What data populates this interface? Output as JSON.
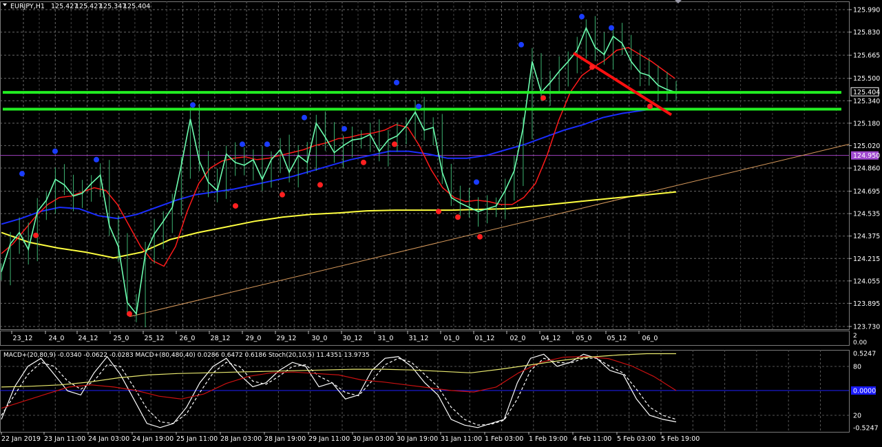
{
  "chart_data": [
    {
      "type": "line",
      "title": "EURJPY,H1",
      "ohlc": [
        "125.427",
        "125.427",
        "125.347",
        "125.404"
      ],
      "y_range": [
        123.73,
        125.99
      ],
      "y_ticks": [
        "125.990",
        "125.830",
        "125.665",
        "125.500",
        "125.340",
        "125.180",
        "125.020",
        "124.860",
        "124.695",
        "124.535",
        "124.375",
        "124.215",
        "124.055",
        "123.895",
        "123.730"
      ],
      "price_tag": "125.404",
      "level_tag": "124.950",
      "x_ticks": [
        "23_12",
        "24_0",
        "24_12",
        "25_0",
        "25_12",
        "26_0",
        "28_12",
        "29_0",
        "29_12",
        "30_0",
        "30_12",
        "31_0",
        "31_12",
        "01_0",
        "01_12",
        "02_0",
        "04_12",
        "05_0",
        "05_12",
        "06_0"
      ],
      "series": [
        {
          "role": "price",
          "color": "#6dffb0",
          "values": [
            124.12,
            124.32,
            124.4,
            124.28,
            124.55,
            124.63,
            124.78,
            124.74,
            124.66,
            124.68,
            124.75,
            124.81,
            124.45,
            124.3,
            123.9,
            123.82,
            124.25,
            124.39,
            124.48,
            124.58,
            124.88,
            125.21,
            124.91,
            124.76,
            124.7,
            124.96,
            124.9,
            124.88,
            124.92,
            124.78,
            124.92,
            124.99,
            124.83,
            124.95,
            124.9,
            125.18,
            125.08,
            124.97,
            125.02,
            125.06,
            125.07,
            125.1,
            124.98,
            125.06,
            125.09,
            125.16,
            125.26,
            125.13,
            125.15,
            124.83,
            124.65,
            124.61,
            124.58,
            124.55,
            124.57,
            124.59,
            124.7,
            124.84,
            125.15,
            125.62,
            125.4,
            125.47,
            125.55,
            125.62,
            125.7,
            125.86,
            125.72,
            125.67,
            125.8,
            125.75,
            125.62,
            125.54,
            125.52,
            125.45,
            125.42,
            125.4
          ]
        },
        {
          "role": "ma-fast",
          "color": "#ff1a1a",
          "values": [
            124.25,
            124.32,
            124.42,
            124.52,
            124.6,
            124.65,
            124.66,
            124.69,
            124.72,
            124.7,
            124.6,
            124.45,
            124.3,
            124.2,
            124.16,
            124.3,
            124.55,
            124.75,
            124.86,
            124.91,
            124.93,
            124.94,
            124.92,
            124.93,
            124.95,
            124.97,
            124.99,
            125.02,
            125.04,
            125.07,
            125.08,
            125.1,
            125.11,
            125.13,
            125.17,
            125.15,
            125.02,
            124.85,
            124.72,
            124.65,
            124.62,
            124.63,
            124.62,
            124.6,
            124.6,
            124.65,
            124.75,
            124.95,
            125.2,
            125.4,
            125.52,
            125.58,
            125.63,
            125.7,
            125.72,
            125.67,
            125.62,
            125.56,
            125.5
          ]
        },
        {
          "role": "ma-mid",
          "color": "#1a2dff",
          "values": [
            124.46,
            124.5,
            124.55,
            124.58,
            124.57,
            124.52,
            124.5,
            124.53,
            124.58,
            124.63,
            124.67,
            124.69,
            124.71,
            124.74,
            124.77,
            124.8,
            124.84,
            124.88,
            124.92,
            124.95,
            124.98,
            124.98,
            124.96,
            124.93,
            124.93,
            124.95,
            124.99,
            125.03,
            125.08,
            125.13,
            125.17,
            125.22,
            125.25,
            125.27,
            125.29
          ]
        },
        {
          "role": "ma-slow",
          "color": "#ffff40",
          "values": [
            124.4,
            124.33,
            124.29,
            124.26,
            124.22,
            124.26,
            124.35,
            124.4,
            124.44,
            124.48,
            124.51,
            124.53,
            124.54,
            124.555,
            124.56,
            124.56,
            124.56,
            124.565,
            124.57,
            124.59,
            124.61,
            124.63,
            124.65,
            124.67,
            124.69
          ]
        }
      ],
      "horizontal_levels": [
        125.4,
        125.28
      ],
      "fractals_up": [
        124.82,
        124.98,
        124.92,
        125.31,
        125.03,
        125.03,
        125.22,
        125.14,
        125.47,
        125.3,
        124.76,
        125.74,
        125.94,
        125.86
      ],
      "fractals_down": [
        124.38,
        123.82,
        124.59,
        124.67,
        124.74,
        124.9,
        125.03,
        124.55,
        124.51,
        124.37,
        125.36,
        125.58,
        125.3
      ]
    },
    {
      "type": "line",
      "title": "MACD+(20,80,9) -0.0340 -0.0622 -0.0283  MACD+(80,480,40) 0.0286 0.6472 0.6186  Stoch(20,10,5) 11.4351 13.9735",
      "y_ticks_top": [
        "2",
        "0.00"
      ],
      "y_ticks": [
        "0.5247",
        "80",
        "20",
        "-0.5247"
      ],
      "zero_tag": "0.0000",
      "x_ticks": [
        "22 Jan 2019",
        "23 Jan 11:00",
        "24 Jan 03:00",
        "24 Jan 19:00",
        "25 Jan 11:00",
        "28 Jan 03:00",
        "28 Jan 19:00",
        "29 Jan 11:00",
        "30 Jan 03:00",
        "30 Jan 19:00",
        "31 Jan 11:00",
        "1 Feb 03:00",
        "1 Feb 19:00",
        "4 Feb 11:00",
        "5 Feb 03:00",
        "5 Feb 19:00"
      ],
      "series": [
        {
          "role": "stoch-main",
          "color": "#ffffff",
          "values": [
            15,
            55,
            80,
            90,
            70,
            50,
            45,
            72,
            92,
            70,
            40,
            10,
            5,
            10,
            30,
            60,
            80,
            90,
            70,
            55,
            60,
            75,
            85,
            80,
            55,
            60,
            40,
            45,
            75,
            90,
            92,
            80,
            60,
            45,
            15,
            8,
            5,
            10,
            15,
            60,
            90,
            95,
            80,
            85,
            95,
            90,
            75,
            70,
            40,
            20,
            15,
            12
          ]
        },
        {
          "role": "stoch-signal",
          "color": "#ffffff",
          "dashed": true,
          "values": [
            20,
            45,
            70,
            85,
            80,
            62,
            52,
            62,
            82,
            80,
            55,
            28,
            12,
            10,
            22,
            48,
            72,
            85,
            80,
            62,
            58,
            68,
            80,
            82,
            68,
            60,
            48,
            44,
            62,
            82,
            90,
            85,
            70,
            55,
            30,
            15,
            8,
            9,
            14,
            40,
            75,
            90,
            85,
            84,
            90,
            90,
            80,
            72,
            52,
            30,
            20,
            15
          ]
        },
        {
          "role": "macd-fast",
          "color": "#cc1111",
          "values": [
            -0.25,
            -0.15,
            -0.05,
            0.05,
            0.08,
            0.05,
            0.0,
            -0.08,
            -0.12,
            -0.05,
            0.1,
            0.2,
            0.25,
            0.26,
            0.24,
            0.22,
            0.15,
            0.12,
            0.08,
            0.04,
            0.0,
            -0.02,
            0.05,
            0.25,
            0.4,
            0.47,
            0.48,
            0.45,
            0.35,
            0.2,
            0.0
          ]
        },
        {
          "role": "macd-slow",
          "color": "#eaea70",
          "values": [
            0.05,
            0.06,
            0.08,
            0.12,
            0.18,
            0.22,
            0.24,
            0.25,
            0.26,
            0.27,
            0.28,
            0.29,
            0.3,
            0.3,
            0.29,
            0.27,
            0.25,
            0.3,
            0.36,
            0.42,
            0.47,
            0.5,
            0.52,
            0.52
          ]
        }
      ]
    }
  ]
}
